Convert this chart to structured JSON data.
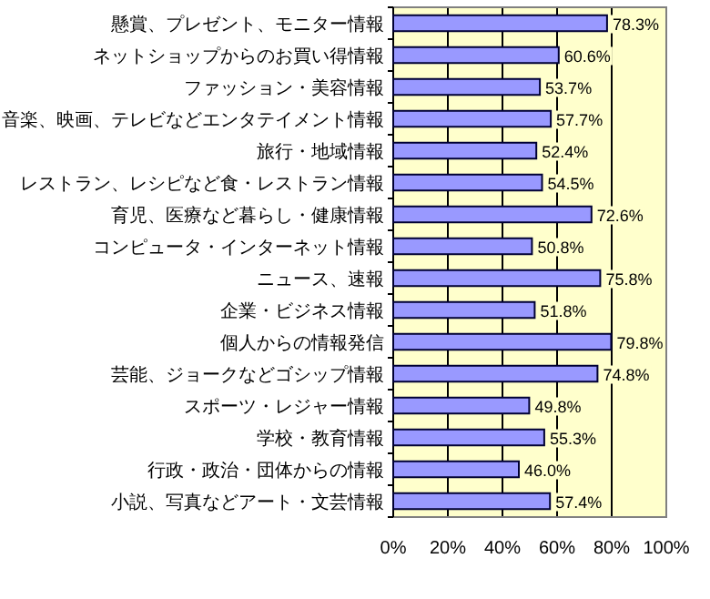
{
  "chart_data": {
    "type": "bar",
    "orientation": "horizontal",
    "categories": [
      "懸賞、プレゼント、モニター情報",
      "ネットショップからのお買い得情報",
      "ファッション・美容情報",
      "音楽、映画、テレビなどエンタテイメント情報",
      "旅行・地域情報",
      "レストラン、レシピなど食・レストラン情報",
      "育児、医療など暮らし・健康情報",
      "コンピュータ・インターネット情報",
      "ニュース、速報",
      "企業・ビジネス情報",
      "個人からの情報発信",
      "芸能、ジョークなどゴシップ情報",
      "スポーツ・レジャー情報",
      "学校・教育情報",
      "行政・政治・団体からの情報",
      "小説、写真などアート・文芸情報"
    ],
    "values": [
      78.3,
      60.6,
      53.7,
      57.7,
      52.4,
      54.5,
      72.6,
      50.8,
      75.8,
      51.8,
      79.8,
      74.8,
      49.8,
      55.3,
      46.0,
      57.4
    ],
    "value_labels": [
      "78.3%",
      "60.6%",
      "53.7%",
      "57.7%",
      "52.4%",
      "54.5%",
      "72.6%",
      "50.8%",
      "75.8%",
      "51.8%",
      "79.8%",
      "74.8%",
      "49.8%",
      "55.3%",
      "46.0%",
      "57.4%"
    ],
    "color": "#9999ff",
    "xlim": [
      0,
      100
    ],
    "xticks": [
      {
        "value": 0,
        "label": "0%"
      },
      {
        "value": 20,
        "label": "20%"
      },
      {
        "value": 40,
        "label": "40%"
      },
      {
        "value": 60,
        "label": "60%"
      },
      {
        "value": 80,
        "label": "80%"
      },
      {
        "value": 100,
        "label": "100%"
      }
    ],
    "grid": "x"
  }
}
